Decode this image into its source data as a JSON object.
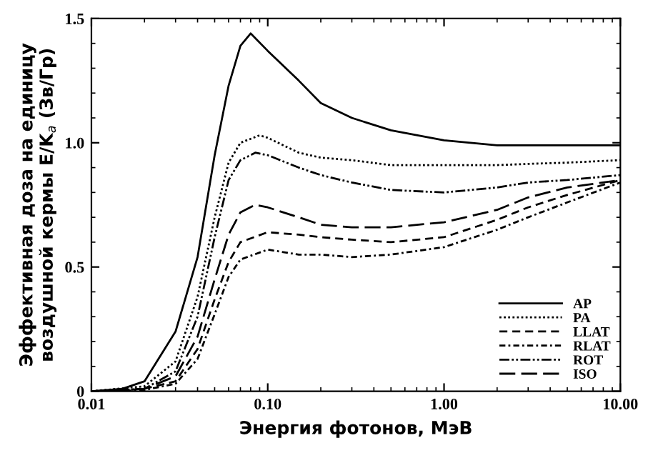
{
  "chart_data": {
    "type": "line",
    "xlabel": "Энергия фотонов, МэВ",
    "ylabel": "Эффективная доза на единицу\nвоздушной кермы E/K$_{a}$ (Зв/Гр)",
    "log": "x",
    "xlim": [
      0.01,
      10
    ],
    "xticks": [
      {
        "value": 0.01,
        "label": "0.01"
      },
      {
        "value": 0.1,
        "label": "0.10"
      },
      {
        "value": 1,
        "label": "1.00"
      },
      {
        "value": 10,
        "label": "10.00"
      }
    ],
    "ylim": [
      0,
      1.5
    ],
    "yticks": [
      0,
      0.5,
      {
        "value": 1.0,
        "label": "1.0"
      },
      1.5
    ],
    "grid": false,
    "legend": "bottom right",
    "marker": "none",
    "series": [
      {
        "name": "AP",
        "color": "#000000",
        "line_style": "solid",
        "x": [
          0.01,
          0.015,
          0.02,
          0.03,
          0.04,
          0.05,
          0.06,
          0.07,
          0.08,
          0.1,
          0.15,
          0.2,
          0.3,
          0.5,
          1,
          2,
          5,
          10
        ],
        "values": [
          0,
          0.01,
          0.04,
          0.24,
          0.54,
          0.95,
          1.23,
          1.39,
          1.44,
          1.37,
          1.25,
          1.16,
          1.1,
          1.05,
          1.01,
          0.99,
          0.99,
          0.99
        ]
      },
      {
        "name": "PA",
        "color": "#000000",
        "line_style": "dotted",
        "x": [
          0.01,
          0.02,
          0.03,
          0.04,
          0.05,
          0.06,
          0.07,
          0.09,
          0.1,
          0.15,
          0.2,
          0.3,
          0.5,
          1,
          2,
          3,
          5,
          10
        ],
        "values": [
          0,
          0.02,
          0.12,
          0.38,
          0.7,
          0.92,
          1.0,
          1.03,
          1.02,
          0.96,
          0.94,
          0.93,
          0.91,
          0.91,
          0.91,
          0.915,
          0.92,
          0.93
        ]
      },
      {
        "name": "LLAT",
        "color": "#000000",
        "line_style": "dashed",
        "x": [
          0.012,
          0.02,
          0.03,
          0.04,
          0.05,
          0.06,
          0.07,
          0.1,
          0.15,
          0.2,
          0.3,
          0.5,
          1,
          2,
          3,
          5,
          10
        ],
        "values": [
          0,
          0.01,
          0.04,
          0.17,
          0.37,
          0.52,
          0.6,
          0.64,
          0.63,
          0.62,
          0.61,
          0.6,
          0.62,
          0.69,
          0.74,
          0.79,
          0.85
        ]
      },
      {
        "name": "RLAT",
        "color": "#000000",
        "line_style": "dashdot",
        "x": [
          0.013,
          0.02,
          0.03,
          0.04,
          0.05,
          0.06,
          0.07,
          0.1,
          0.15,
          0.2,
          0.3,
          0.5,
          1,
          2,
          3,
          5,
          10
        ],
        "values": [
          0,
          0.005,
          0.03,
          0.13,
          0.31,
          0.46,
          0.53,
          0.57,
          0.55,
          0.55,
          0.54,
          0.55,
          0.58,
          0.65,
          0.7,
          0.76,
          0.84
        ]
      },
      {
        "name": "ROT",
        "color": "#000000",
        "line_style": "dashdotdot",
        "x": [
          0.011,
          0.02,
          0.03,
          0.04,
          0.05,
          0.06,
          0.07,
          0.085,
          0.1,
          0.15,
          0.2,
          0.3,
          0.5,
          1,
          2,
          3,
          5,
          10
        ],
        "values": [
          0,
          0.01,
          0.08,
          0.3,
          0.62,
          0.85,
          0.93,
          0.96,
          0.95,
          0.9,
          0.87,
          0.84,
          0.81,
          0.8,
          0.82,
          0.84,
          0.85,
          0.87
        ]
      },
      {
        "name": "ISO",
        "color": "#000000",
        "line_style": "longdash",
        "x": [
          0.01,
          0.02,
          0.03,
          0.04,
          0.05,
          0.06,
          0.07,
          0.085,
          0.1,
          0.15,
          0.2,
          0.3,
          0.5,
          1,
          2,
          3,
          5,
          10
        ],
        "values": [
          0,
          0.01,
          0.06,
          0.22,
          0.45,
          0.63,
          0.72,
          0.75,
          0.74,
          0.7,
          0.67,
          0.66,
          0.66,
          0.68,
          0.73,
          0.78,
          0.82,
          0.85
        ]
      }
    ]
  }
}
